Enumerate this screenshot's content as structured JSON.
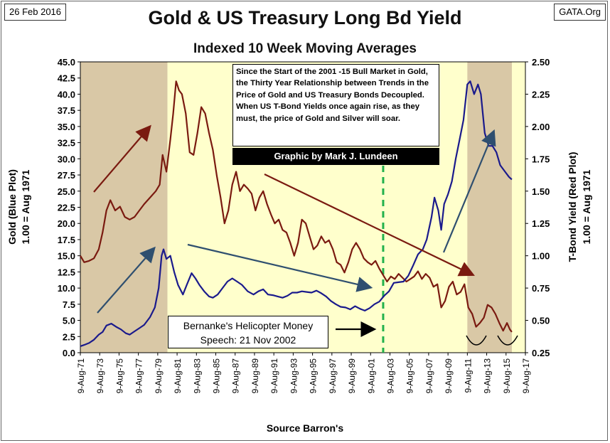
{
  "header": {
    "date_tag": "26 Feb 2016",
    "source_tag": "GATA.Org",
    "title": "Gold & US Treasury Long Bd Yield",
    "subtitle": "Indexed 10 Week Moving Averages"
  },
  "annotations": {
    "note_text": "Since the Start of the 2001  -15 Bull Market in Gold, the Thirty Year Relationship between Trends in the Price of Gold and US Treasury Bonds Decoupled.  When US T-Bond Yields once again rise, as they must, the price of Gold and Silver will soar.",
    "credit": "Graphic by Mark J. Lundeen",
    "speech": "Bernanke's Helicopter Money\nSpeech: 21 Nov 2002"
  },
  "colors": {
    "gold": "#1a1a8c",
    "bond": "#7a1a10",
    "shade": "#d9c8a6",
    "plot_bg": "#ffffcc",
    "green_dash": "#22b14c",
    "arrow_blue": "#2f4f6f",
    "arrow_red": "#7a1a10"
  },
  "chart_data": {
    "type": "line",
    "xlabel": "Source Barron's",
    "x_range": [
      1971.6,
      2017.6
    ],
    "x_ticks": [
      "9-Aug-71",
      "9-Aug-73",
      "9-Aug-75",
      "9-Aug-77",
      "9-Aug-79",
      "9-Aug-81",
      "9-Aug-83",
      "9-Aug-85",
      "9-Aug-87",
      "9-Aug-89",
      "9-Aug-91",
      "9-Aug-93",
      "9-Aug-95",
      "9-Aug-97",
      "9-Aug-99",
      "9-Aug-01",
      "9-Aug-03",
      "9-Aug-05",
      "9-Aug-07",
      "9-Aug-09",
      "9-Aug-11",
      "9-Aug-13",
      "9-Aug-15",
      "9-Aug-17"
    ],
    "left_axis": {
      "label_line1": "Gold    (Blue Plot)",
      "label_line2": "1.00 = Aug 1971",
      "ylim": [
        0,
        45
      ],
      "ticks": [
        "0.0",
        "2.5",
        "5.0",
        "7.5",
        "10.0",
        "12.5",
        "15.0",
        "17.5",
        "20.0",
        "22.5",
        "25.0",
        "27.5",
        "30.0",
        "32.5",
        "35.0",
        "37.5",
        "40.0",
        "42.5",
        "45.0"
      ]
    },
    "right_axis": {
      "label_line1": "T-Bond Yield    (Red Plot)",
      "label_line2": "1.00 = Aug 1971",
      "ylim": [
        0.25,
        2.5
      ],
      "ticks": [
        "0.25",
        "0.50",
        "0.75",
        "1.00",
        "1.25",
        "1.50",
        "1.75",
        "2.00",
        "2.25",
        "2.50"
      ]
    },
    "shaded_periods": [
      [
        1971.6,
        1980.6
      ],
      [
        2011.6,
        2016.2
      ]
    ],
    "vertical_marker_x": 2002.9,
    "series": [
      {
        "axis": "left",
        "points": [
          [
            1971.6,
            1.0
          ],
          [
            1972.0,
            1.2
          ],
          [
            1972.5,
            1.5
          ],
          [
            1973.0,
            2.0
          ],
          [
            1973.5,
            2.8
          ],
          [
            1973.9,
            3.2
          ],
          [
            1974.3,
            4.2
          ],
          [
            1974.8,
            4.5
          ],
          [
            1975.3,
            4.0
          ],
          [
            1975.8,
            3.6
          ],
          [
            1976.3,
            3.0
          ],
          [
            1976.7,
            2.8
          ],
          [
            1977.2,
            3.3
          ],
          [
            1977.7,
            3.8
          ],
          [
            1978.2,
            4.3
          ],
          [
            1978.8,
            5.5
          ],
          [
            1979.3,
            7.0
          ],
          [
            1979.7,
            10.0
          ],
          [
            1980.0,
            15.0
          ],
          [
            1980.2,
            16.0
          ],
          [
            1980.5,
            14.5
          ],
          [
            1980.9,
            15.0
          ],
          [
            1981.3,
            12.5
          ],
          [
            1981.7,
            10.5
          ],
          [
            1982.2,
            9.0
          ],
          [
            1982.6,
            10.5
          ],
          [
            1983.1,
            12.3
          ],
          [
            1983.5,
            11.5
          ],
          [
            1983.9,
            10.5
          ],
          [
            1984.4,
            9.5
          ],
          [
            1984.9,
            8.7
          ],
          [
            1985.3,
            8.5
          ],
          [
            1985.8,
            9.0
          ],
          [
            1986.3,
            10.0
          ],
          [
            1986.8,
            11.0
          ],
          [
            1987.3,
            11.5
          ],
          [
            1987.8,
            11.0
          ],
          [
            1988.3,
            10.5
          ],
          [
            1988.9,
            9.5
          ],
          [
            1989.5,
            9.0
          ],
          [
            1990.0,
            9.5
          ],
          [
            1990.5,
            9.8
          ],
          [
            1991.0,
            9.0
          ],
          [
            1991.5,
            8.9
          ],
          [
            1992.0,
            8.7
          ],
          [
            1992.5,
            8.5
          ],
          [
            1993.0,
            8.8
          ],
          [
            1993.5,
            9.3
          ],
          [
            1994.0,
            9.3
          ],
          [
            1994.5,
            9.5
          ],
          [
            1995.0,
            9.4
          ],
          [
            1995.5,
            9.3
          ],
          [
            1996.0,
            9.6
          ],
          [
            1996.5,
            9.2
          ],
          [
            1997.0,
            8.7
          ],
          [
            1997.5,
            8.0
          ],
          [
            1998.0,
            7.5
          ],
          [
            1998.5,
            7.1
          ],
          [
            1999.0,
            7.0
          ],
          [
            1999.5,
            6.7
          ],
          [
            2000.0,
            7.2
          ],
          [
            2000.5,
            6.8
          ],
          [
            2001.0,
            6.5
          ],
          [
            2001.5,
            6.9
          ],
          [
            2002.0,
            7.5
          ],
          [
            2002.5,
            7.9
          ],
          [
            2003.0,
            8.8
          ],
          [
            2003.5,
            9.5
          ],
          [
            2004.0,
            10.8
          ],
          [
            2004.5,
            10.9
          ],
          [
            2005.0,
            11.0
          ],
          [
            2005.5,
            11.9
          ],
          [
            2006.0,
            13.5
          ],
          [
            2006.5,
            15.2
          ],
          [
            2007.0,
            16.0
          ],
          [
            2007.4,
            17.5
          ],
          [
            2007.9,
            21.0
          ],
          [
            2008.2,
            24.0
          ],
          [
            2008.6,
            22.0
          ],
          [
            2008.9,
            19.0
          ],
          [
            2009.2,
            23.0
          ],
          [
            2009.6,
            24.5
          ],
          [
            2010.0,
            26.5
          ],
          [
            2010.4,
            30.0
          ],
          [
            2010.8,
            33.0
          ],
          [
            2011.2,
            36.0
          ],
          [
            2011.6,
            41.5
          ],
          [
            2011.9,
            42.0
          ],
          [
            2012.3,
            40.0
          ],
          [
            2012.7,
            41.5
          ],
          [
            2013.0,
            40.0
          ],
          [
            2013.4,
            34.0
          ],
          [
            2013.8,
            32.0
          ],
          [
            2014.2,
            32.0
          ],
          [
            2014.6,
            31.0
          ],
          [
            2015.0,
            29.0
          ],
          [
            2015.5,
            28.0
          ],
          [
            2015.9,
            27.2
          ],
          [
            2016.2,
            26.8
          ]
        ]
      },
      {
        "axis": "right",
        "points": [
          [
            1971.6,
            1.0
          ],
          [
            1972.0,
            0.95
          ],
          [
            1972.5,
            0.96
          ],
          [
            1973.0,
            0.98
          ],
          [
            1973.5,
            1.05
          ],
          [
            1973.9,
            1.18
          ],
          [
            1974.3,
            1.35
          ],
          [
            1974.7,
            1.43
          ],
          [
            1975.2,
            1.35
          ],
          [
            1975.7,
            1.38
          ],
          [
            1976.2,
            1.3
          ],
          [
            1976.7,
            1.28
          ],
          [
            1977.2,
            1.3
          ],
          [
            1977.7,
            1.35
          ],
          [
            1978.2,
            1.4
          ],
          [
            1978.8,
            1.45
          ],
          [
            1979.4,
            1.5
          ],
          [
            1979.8,
            1.55
          ],
          [
            1980.1,
            1.78
          ],
          [
            1980.5,
            1.65
          ],
          [
            1980.9,
            1.9
          ],
          [
            1981.2,
            2.1
          ],
          [
            1981.5,
            2.35
          ],
          [
            1981.8,
            2.28
          ],
          [
            1982.1,
            2.25
          ],
          [
            1982.5,
            2.1
          ],
          [
            1982.9,
            1.8
          ],
          [
            1983.3,
            1.78
          ],
          [
            1983.7,
            1.95
          ],
          [
            1984.1,
            2.15
          ],
          [
            1984.5,
            2.1
          ],
          [
            1984.9,
            1.95
          ],
          [
            1985.3,
            1.82
          ],
          [
            1985.7,
            1.62
          ],
          [
            1986.1,
            1.45
          ],
          [
            1986.5,
            1.25
          ],
          [
            1986.9,
            1.35
          ],
          [
            1987.3,
            1.55
          ],
          [
            1987.7,
            1.65
          ],
          [
            1988.1,
            1.5
          ],
          [
            1988.5,
            1.55
          ],
          [
            1988.9,
            1.52
          ],
          [
            1989.3,
            1.48
          ],
          [
            1989.7,
            1.35
          ],
          [
            1990.1,
            1.45
          ],
          [
            1990.5,
            1.5
          ],
          [
            1990.9,
            1.4
          ],
          [
            1991.3,
            1.32
          ],
          [
            1991.7,
            1.25
          ],
          [
            1992.1,
            1.28
          ],
          [
            1992.5,
            1.2
          ],
          [
            1992.9,
            1.18
          ],
          [
            1993.3,
            1.1
          ],
          [
            1993.7,
            1.0
          ],
          [
            1994.1,
            1.1
          ],
          [
            1994.5,
            1.28
          ],
          [
            1994.9,
            1.25
          ],
          [
            1995.3,
            1.15
          ],
          [
            1995.7,
            1.05
          ],
          [
            1996.1,
            1.08
          ],
          [
            1996.5,
            1.15
          ],
          [
            1996.9,
            1.1
          ],
          [
            1997.3,
            1.12
          ],
          [
            1997.7,
            1.05
          ],
          [
            1998.1,
            0.95
          ],
          [
            1998.5,
            0.93
          ],
          [
            1998.9,
            0.87
          ],
          [
            1999.3,
            0.95
          ],
          [
            1999.7,
            1.05
          ],
          [
            2000.1,
            1.1
          ],
          [
            2000.5,
            1.05
          ],
          [
            2000.9,
            0.98
          ],
          [
            2001.3,
            0.95
          ],
          [
            2001.7,
            0.93
          ],
          [
            2002.1,
            0.96
          ],
          [
            2002.5,
            0.9
          ],
          [
            2002.9,
            0.85
          ],
          [
            2003.3,
            0.8
          ],
          [
            2003.7,
            0.84
          ],
          [
            2004.1,
            0.82
          ],
          [
            2004.5,
            0.86
          ],
          [
            2004.9,
            0.83
          ],
          [
            2005.3,
            0.8
          ],
          [
            2005.7,
            0.82
          ],
          [
            2006.1,
            0.84
          ],
          [
            2006.5,
            0.88
          ],
          [
            2006.9,
            0.82
          ],
          [
            2007.3,
            0.86
          ],
          [
            2007.7,
            0.83
          ],
          [
            2008.1,
            0.76
          ],
          [
            2008.5,
            0.78
          ],
          [
            2008.9,
            0.6
          ],
          [
            2009.3,
            0.65
          ],
          [
            2009.7,
            0.76
          ],
          [
            2010.1,
            0.8
          ],
          [
            2010.5,
            0.7
          ],
          [
            2010.9,
            0.72
          ],
          [
            2011.3,
            0.78
          ],
          [
            2011.7,
            0.6
          ],
          [
            2012.1,
            0.55
          ],
          [
            2012.5,
            0.45
          ],
          [
            2012.9,
            0.48
          ],
          [
            2013.3,
            0.52
          ],
          [
            2013.7,
            0.62
          ],
          [
            2014.1,
            0.6
          ],
          [
            2014.5,
            0.55
          ],
          [
            2014.9,
            0.48
          ],
          [
            2015.3,
            0.42
          ],
          [
            2015.7,
            0.48
          ],
          [
            2016.0,
            0.43
          ],
          [
            2016.2,
            0.41
          ]
        ]
      }
    ]
  }
}
